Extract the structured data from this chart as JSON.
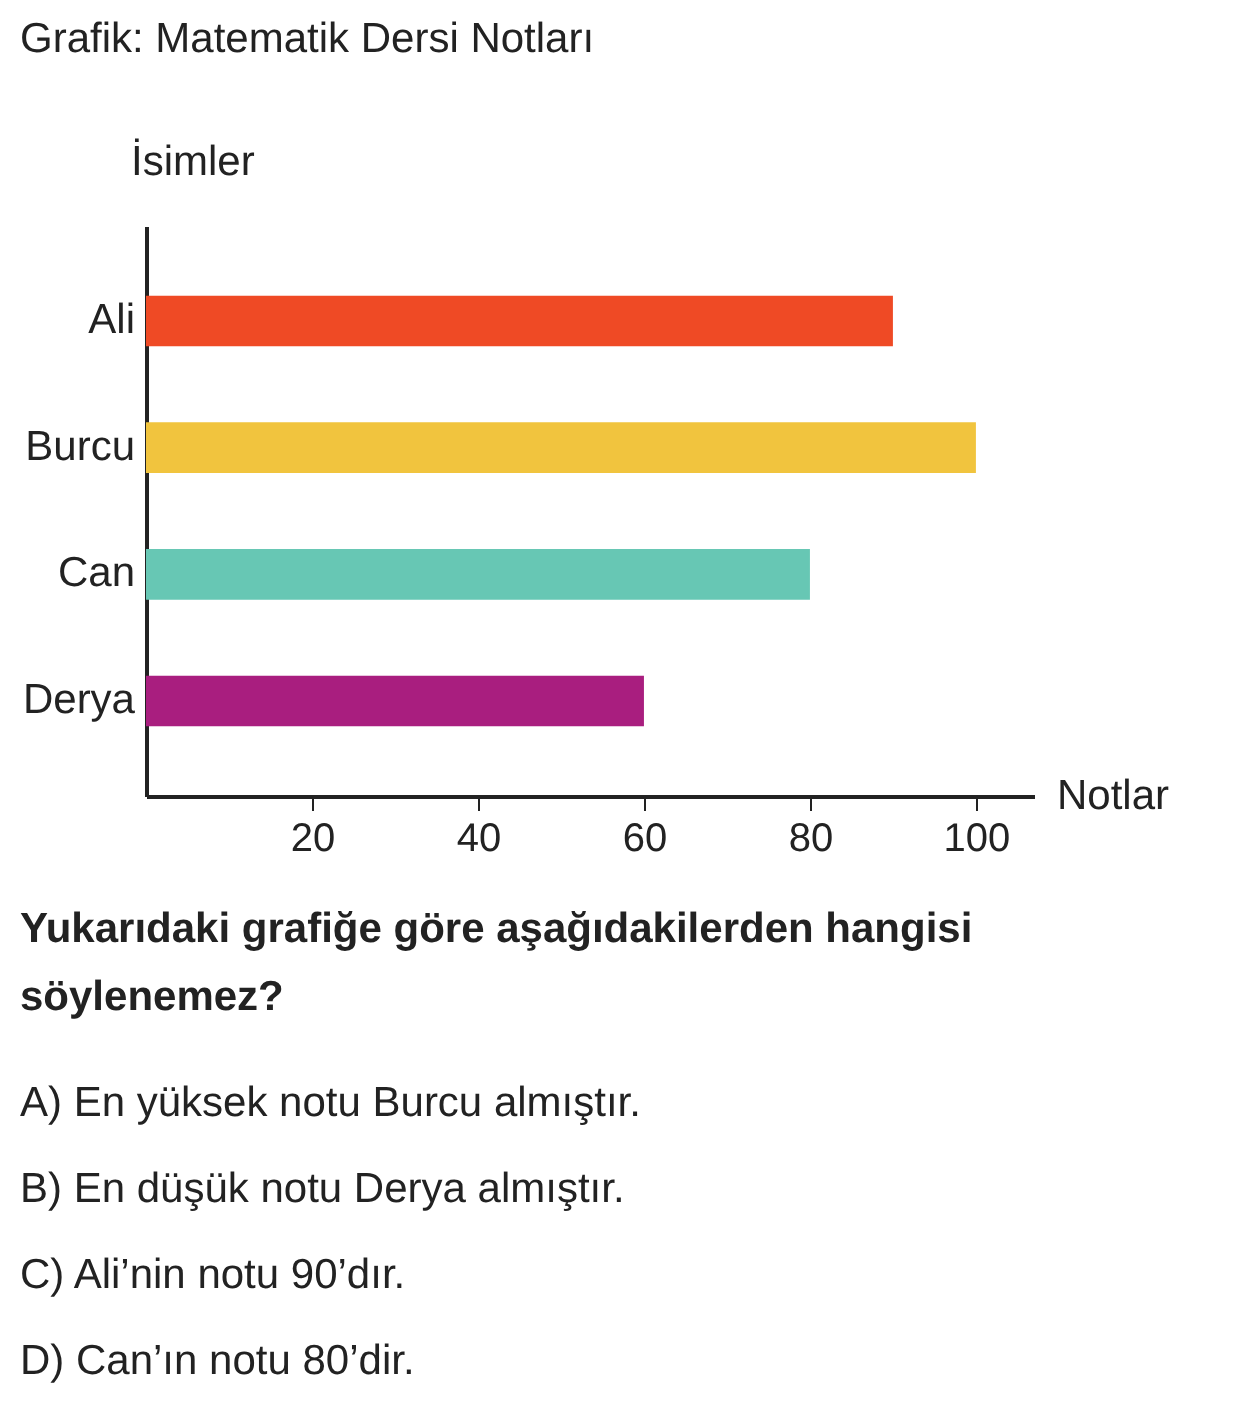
{
  "chart_data": {
    "type": "bar",
    "orientation": "horizontal",
    "title": "Grafik: Matematik Dersi Notları",
    "xlabel": "Notlar",
    "ylabel": "İsimler",
    "categories": [
      "Ali",
      "Burcu",
      "Can",
      "Derya"
    ],
    "values": [
      90,
      100,
      80,
      60
    ],
    "colors": [
      "#ef4a25",
      "#f1c43e",
      "#67c7b4",
      "#a91e7f"
    ],
    "xlim": [
      0,
      107
    ],
    "xticks": [
      20,
      40,
      60,
      80,
      100
    ],
    "grid": false,
    "legend": false,
    "annotations": [
      "Yukarıdaki grafiğe göre aşağıdakilerden hangisi söylenemez?",
      "A) En yüksek notu Burcu almıştır.",
      "B) En düşük notu Derya almıştır.",
      "C) Ali’nin notu 90’dır.",
      "D) Can’ın notu 80’dir."
    ]
  }
}
